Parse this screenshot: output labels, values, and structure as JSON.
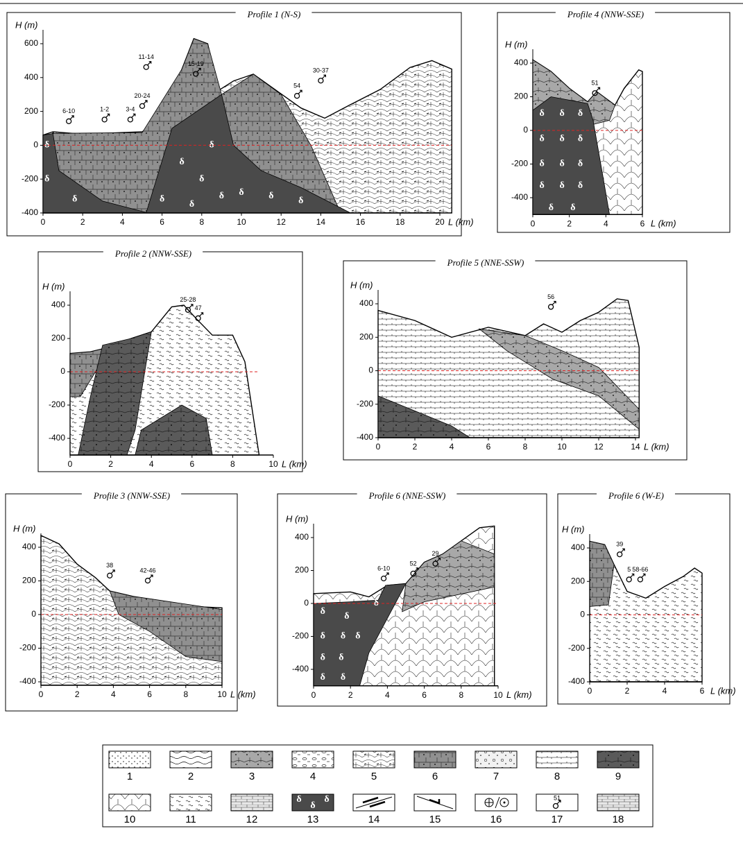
{
  "panels": [
    {
      "title": "Profile 1 (N-S)",
      "y_label": "H (m)",
      "x_label": "L (km)",
      "yticks": [
        600,
        400,
        200,
        0,
        -200,
        -400
      ],
      "xticks": [
        0,
        2,
        4,
        6,
        8,
        10,
        12,
        14,
        16,
        18,
        20
      ],
      "samples": [
        "6-10",
        "1-2",
        "3-4",
        "11-14",
        "20-24",
        "15-19",
        "54",
        "30-37"
      ]
    },
    {
      "title": "Profile 4 (NNW-SSE)",
      "y_label": "H (m)",
      "x_label": "L (km)",
      "yticks": [
        400,
        200,
        0,
        -200,
        -400
      ],
      "xticks": [
        0,
        2,
        4,
        6
      ],
      "samples": [
        "51"
      ]
    },
    {
      "title": "Profile 2 (NNW-SSE)",
      "y_label": "H (m)",
      "x_label": "L (km)",
      "yticks": [
        400,
        200,
        0,
        -200,
        -400
      ],
      "xticks": [
        0,
        2,
        4,
        6,
        8,
        10
      ],
      "samples": [
        "25-28",
        "47"
      ]
    },
    {
      "title": "Profile 5 (NNE-SSW)",
      "y_label": "H (m)",
      "x_label": "L (km)",
      "yticks": [
        400,
        200,
        0,
        -200,
        -400
      ],
      "xticks": [
        0,
        2,
        4,
        6,
        8,
        10,
        12,
        14
      ],
      "samples": [
        "56"
      ]
    },
    {
      "title": "Profile 3 (NNW-SSE)",
      "y_label": "H (m)",
      "x_label": "L (km)",
      "yticks": [
        400,
        200,
        0,
        -200,
        -400
      ],
      "xticks": [
        0,
        2,
        4,
        6,
        8,
        10
      ],
      "samples": [
        "38",
        "42-46"
      ]
    },
    {
      "title": "Profile 6 (NNE-SSW)",
      "y_label": "H (m)",
      "x_label": "L (km)",
      "yticks": [
        400,
        200,
        0,
        -200,
        -400
      ],
      "xticks": [
        0,
        2,
        4,
        6,
        8,
        10
      ],
      "samples": [
        "6-10",
        "52",
        "29"
      ]
    },
    {
      "title": "Profile 6 (W-E)",
      "y_label": "H (m)",
      "x_label": "L (km)",
      "yticks": [
        400,
        200,
        0,
        -200,
        -400
      ],
      "xticks": [
        0,
        2,
        4,
        6
      ],
      "samples": [
        "39",
        "5",
        "58-66"
      ]
    }
  ],
  "delta_symbol": "δ",
  "legend": {
    "items": [
      "1",
      "2",
      "3",
      "4",
      "5",
      "6",
      "7",
      "8",
      "9",
      "10",
      "11",
      "12",
      "13",
      "14",
      "15",
      "16",
      "17",
      "18"
    ],
    "sample_label": "51"
  }
}
